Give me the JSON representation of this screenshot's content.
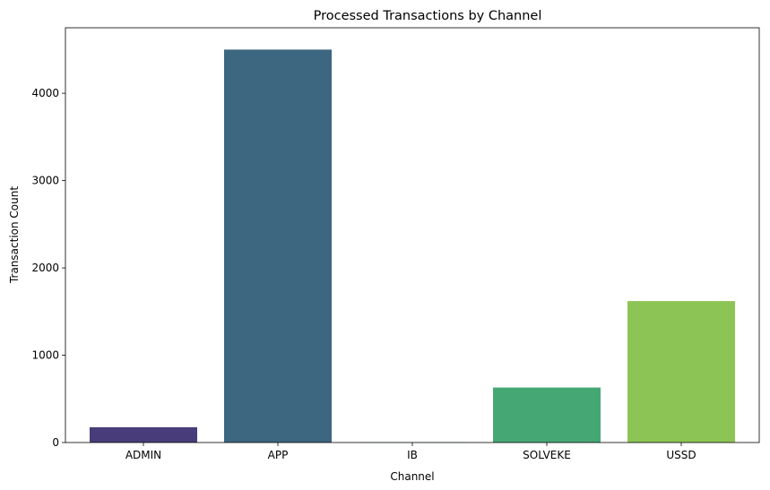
{
  "chart_data": {
    "type": "bar",
    "title": "Processed Transactions by Channel",
    "xlabel": "Channel",
    "ylabel": "Transaction Count",
    "categories": [
      "ADMIN",
      "APP",
      "IB",
      "SOLVEKE",
      "USSD"
    ],
    "values": [
      175,
      4500,
      2,
      630,
      1620
    ],
    "colors": [
      "#483d7a",
      "#3d6680",
      "#2a8d8c",
      "#45a874",
      "#8dc456"
    ],
    "ylim": [
      0,
      4750
    ],
    "yticks": [
      0,
      1000,
      2000,
      3000,
      4000
    ],
    "ytick_labels": [
      "0",
      "1000",
      "2000",
      "3000",
      "4000"
    ],
    "grid": false,
    "legend": "none"
  }
}
